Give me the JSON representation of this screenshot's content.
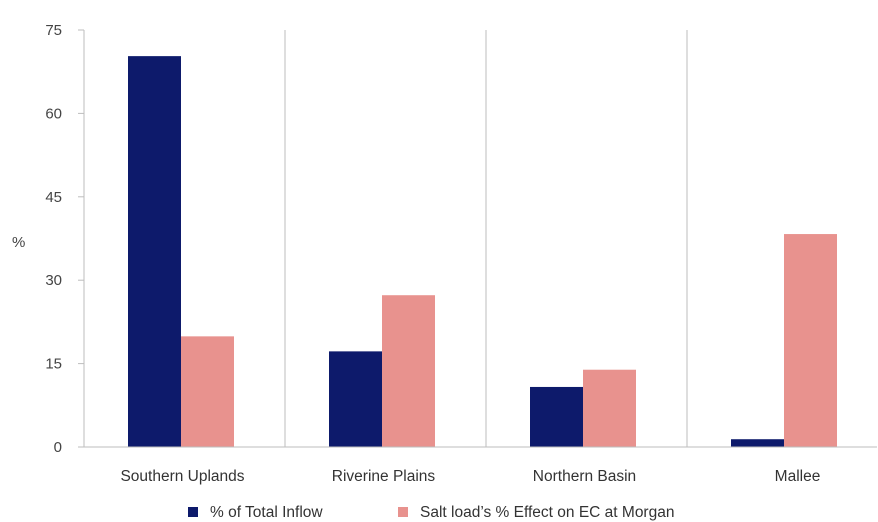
{
  "chart_data": {
    "type": "bar",
    "title": "",
    "xlabel": "",
    "ylabel": "%",
    "ylim": [
      0,
      75
    ],
    "yticks": [
      "0",
      "15",
      "30",
      "45",
      "60",
      "75"
    ],
    "ytick_values": [
      0,
      15,
      30,
      45,
      60,
      75
    ],
    "grid": "vertical category separators",
    "legend_position": "bottom",
    "categories": [
      "Southern Uplands",
      "Riverine Plains",
      "Northern Basin",
      "Mallee"
    ],
    "series": [
      {
        "name": "% of Total Inflow",
        "color": "#0d1a6b",
        "values": [
          70.3,
          17.2,
          10.8,
          1.4
        ]
      },
      {
        "name": "Salt load’s % Effect on EC at Morgan",
        "color": "#e8928e",
        "values": [
          19.9,
          27.3,
          13.9,
          38.3
        ]
      }
    ]
  }
}
